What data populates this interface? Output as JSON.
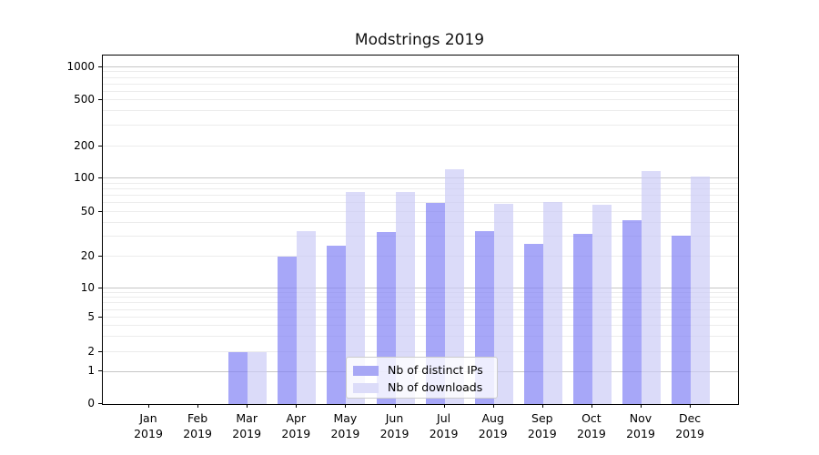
{
  "title": "Modstrings 2019",
  "chart_data": {
    "type": "bar",
    "title": "Modstrings 2019",
    "categories": [
      "Jan",
      "Feb",
      "Mar",
      "Apr",
      "May",
      "Jun",
      "Jul",
      "Aug",
      "Sep",
      "Oct",
      "Nov",
      "Dec"
    ],
    "year_label": "2019",
    "series": [
      {
        "name": "Nb of distinct IPs",
        "color": "rgba(130,130,245,0.7)",
        "legend_color": "#a7a7f5",
        "values": [
          0,
          0,
          2,
          20,
          25,
          33,
          60,
          34,
          26,
          32,
          42,
          31
        ]
      },
      {
        "name": "Nb of downloads",
        "color": "rgba(204,204,247,0.7)",
        "legend_color": "#dcdcf9",
        "values": [
          0,
          0,
          2,
          34,
          75,
          75,
          122,
          59,
          62,
          58,
          117,
          104
        ]
      }
    ],
    "yscale": "symlog",
    "y_ticks": [
      0,
      1,
      2,
      5,
      10,
      20,
      50,
      100,
      200,
      500,
      1000
    ],
    "ylim": [
      0,
      1300
    ],
    "grid": true,
    "legend_position": "lower center"
  },
  "colors": {
    "grid_major": "#c6c6c6",
    "grid_minor": "#ececec",
    "axis": "#000000",
    "text": "#000000",
    "legend_border": "#cccccc",
    "background": "#ffffff"
  }
}
